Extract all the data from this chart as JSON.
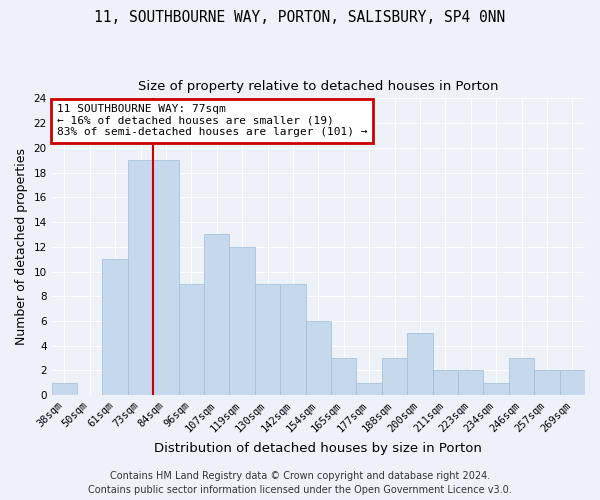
{
  "title_line1": "11, SOUTHBOURNE WAY, PORTON, SALISBURY, SP4 0NN",
  "title_line2": "Size of property relative to detached houses in Porton",
  "xlabel": "Distribution of detached houses by size in Porton",
  "ylabel": "Number of detached properties",
  "categories": [
    "38sqm",
    "50sqm",
    "61sqm",
    "73sqm",
    "84sqm",
    "96sqm",
    "107sqm",
    "119sqm",
    "130sqm",
    "142sqm",
    "154sqm",
    "165sqm",
    "177sqm",
    "188sqm",
    "200sqm",
    "211sqm",
    "223sqm",
    "234sqm",
    "246sqm",
    "257sqm",
    "269sqm"
  ],
  "values": [
    1,
    0,
    11,
    19,
    19,
    9,
    13,
    12,
    9,
    9,
    6,
    3,
    1,
    3,
    5,
    2,
    2,
    1,
    3,
    2,
    2
  ],
  "bar_color": "#c6d9ec",
  "bar_edge_color": "#9dbdd8",
  "ylim": [
    0,
    24
  ],
  "yticks": [
    0,
    2,
    4,
    6,
    8,
    10,
    12,
    14,
    16,
    18,
    20,
    22,
    24
  ],
  "red_line_x": 3.5,
  "annotation_line1": "11 SOUTHBOURNE WAY: 77sqm",
  "annotation_line2": "← 16% of detached houses are smaller (19)",
  "annotation_line3": "83% of semi-detached houses are larger (101) →",
  "annotation_box_color": "#ffffff",
  "annotation_border_color": "#cc0000",
  "footer_line1": "Contains HM Land Registry data © Crown copyright and database right 2024.",
  "footer_line2": "Contains public sector information licensed under the Open Government Licence v3.0.",
  "background_color": "#edf2f9",
  "grid_color": "#ffffff",
  "title_fontsize": 10.5,
  "subtitle_fontsize": 9.5,
  "ylabel_fontsize": 9,
  "xlabel_fontsize": 9.5,
  "tick_fontsize": 7.5,
  "annotation_fontsize": 8,
  "footer_fontsize": 7
}
